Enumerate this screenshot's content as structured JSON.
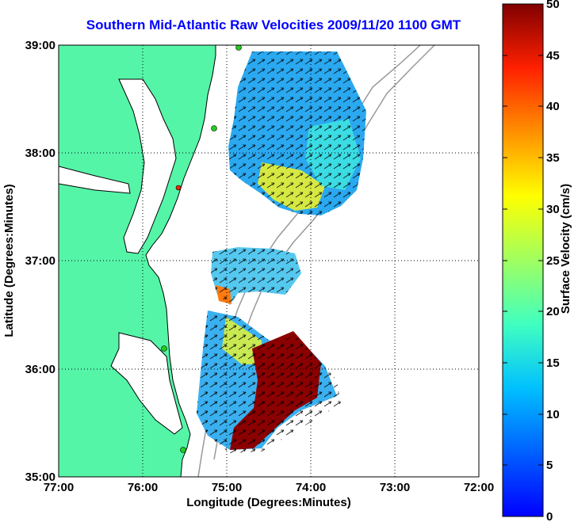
{
  "title": "Southern Mid-Atlantic Raw Velocities 2009/11/20 1100 GMT",
  "xlabel": "Longitude (Degrees:Minutes)",
  "ylabel": "Latitude (Degrees:Minutes)",
  "colorbar_label": "Surface Velocity (cm/s)",
  "x_ticks": [
    "77:00",
    "76:00",
    "75:00",
    "74:00",
    "73:00",
    "72:00"
  ],
  "y_ticks": [
    "39:00",
    "38:00",
    "37:00",
    "36:00",
    "35:00"
  ],
  "colorbar_ticks": [
    "50",
    "45",
    "40",
    "35",
    "30",
    "25",
    "20",
    "15",
    "10",
    "5",
    "0"
  ],
  "colors": {
    "land": "#55f5a8",
    "title": "#0000ff",
    "ocean": "#ffffff",
    "bathymetry": "#999999"
  },
  "chart_data": {
    "type": "heatmap",
    "xlim": [
      -77,
      -72
    ],
    "ylim": [
      35,
      39
    ],
    "clim": [
      0,
      50
    ],
    "colormap": "jet",
    "grid": true
  }
}
